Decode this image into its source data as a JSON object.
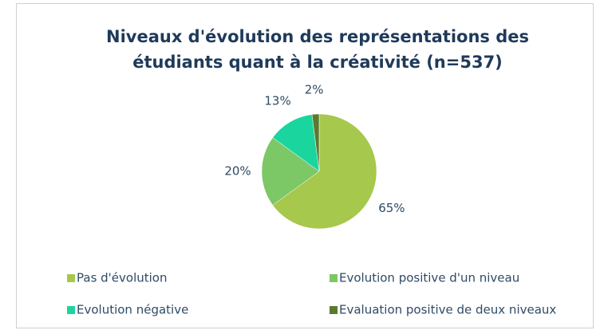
{
  "chart_data": {
    "type": "pie",
    "title": "Niveaux d'évolution des représentations des étudiants quant à la créativité (n=537)",
    "categories": [
      "Pas d'évolution",
      "Evolution positive d'un niveau",
      "Evolution négative",
      "Evaluation positive de deux niveaux"
    ],
    "values": [
      65,
      20,
      13,
      2
    ],
    "value_labels": [
      "65%",
      "20%",
      "13%",
      "2%"
    ],
    "colors": [
      "#a6c84c",
      "#7cc766",
      "#1bd59e",
      "#5b7a2f"
    ],
    "legend": "bottom"
  }
}
